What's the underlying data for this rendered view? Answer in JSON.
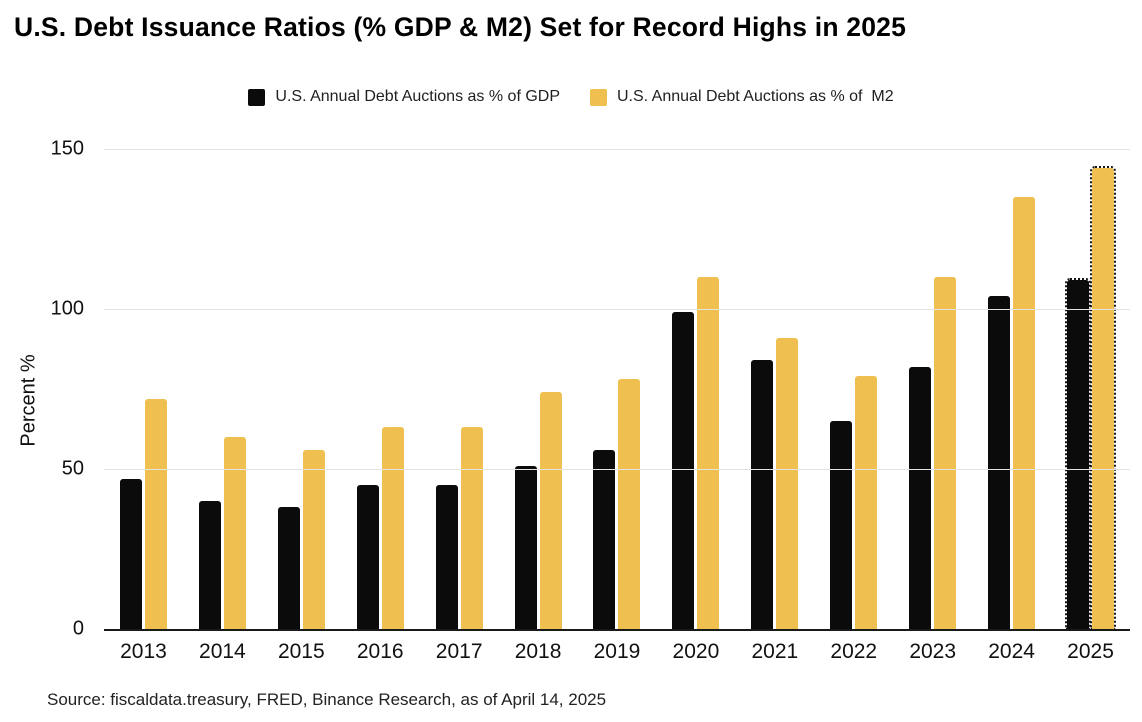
{
  "title": "U.S. Debt Issuance Ratios (% GDP & M2) Set for Record Highs in 2025",
  "source_note": "Source: fiscaldata.treasury, FRED, Binance Research, as of April 14, 2025",
  "colors": {
    "gdp_series": "#0B0B0B",
    "m2_series": "#EFC04F",
    "gridline": "#E3E3E3",
    "axis_line": "#1A1A1A"
  },
  "chart_data": {
    "type": "bar",
    "title": "U.S. Debt Issuance Ratios (% GDP & M2) Set for Record Highs in 2025",
    "categories": [
      "2013",
      "2014",
      "2015",
      "2016",
      "2017",
      "2018",
      "2019",
      "2020",
      "2021",
      "2022",
      "2023",
      "2024",
      "2025"
    ],
    "series": [
      {
        "name": "U.S. Annual Debt Auctions as % of GDP",
        "color": "#0B0B0B",
        "values": [
          47,
          40,
          38,
          45,
          45,
          51,
          56,
          99,
          84,
          65,
          82,
          104,
          109
        ]
      },
      {
        "name": "U.S. Annual Debt Auctions as % of  M2",
        "color": "#EFC04F",
        "values": [
          72,
          60,
          56,
          63,
          63,
          74,
          78,
          110,
          91,
          79,
          110,
          135,
          144
        ]
      }
    ],
    "projected_categories": [
      "2025"
    ],
    "xlabel": "",
    "ylabel": "Percent %",
    "yticks": [
      0,
      50,
      100,
      150
    ],
    "ylim": [
      0,
      150
    ],
    "grid": "horizontal",
    "legend_position": "top"
  }
}
